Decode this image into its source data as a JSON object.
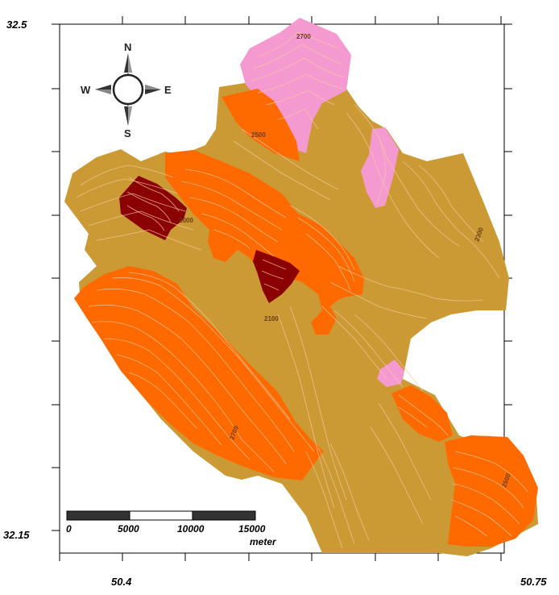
{
  "axes": {
    "y_top_label": "32.5",
    "y_bottom_label": "32.15",
    "x_left_label": "50.4",
    "x_right_label": "50.75"
  },
  "compass": {
    "north": "N",
    "south": "S",
    "east": "E",
    "west": "W"
  },
  "contour_labels": [
    "2700",
    "2500",
    "2000",
    "2100",
    "2300",
    "2700",
    "2500"
  ],
  "scale_bar": {
    "ticks": [
      "0",
      "5000",
      "10000",
      "15000"
    ],
    "unit": "meter"
  },
  "colors": {
    "base_zone": "#cc9a34",
    "orange_zone": "#ff6a00",
    "dark_red_zone": "#8b0000",
    "pink_zone": "#f59ad0",
    "contour_line": "#f5c9a0",
    "frame": "#000000"
  }
}
